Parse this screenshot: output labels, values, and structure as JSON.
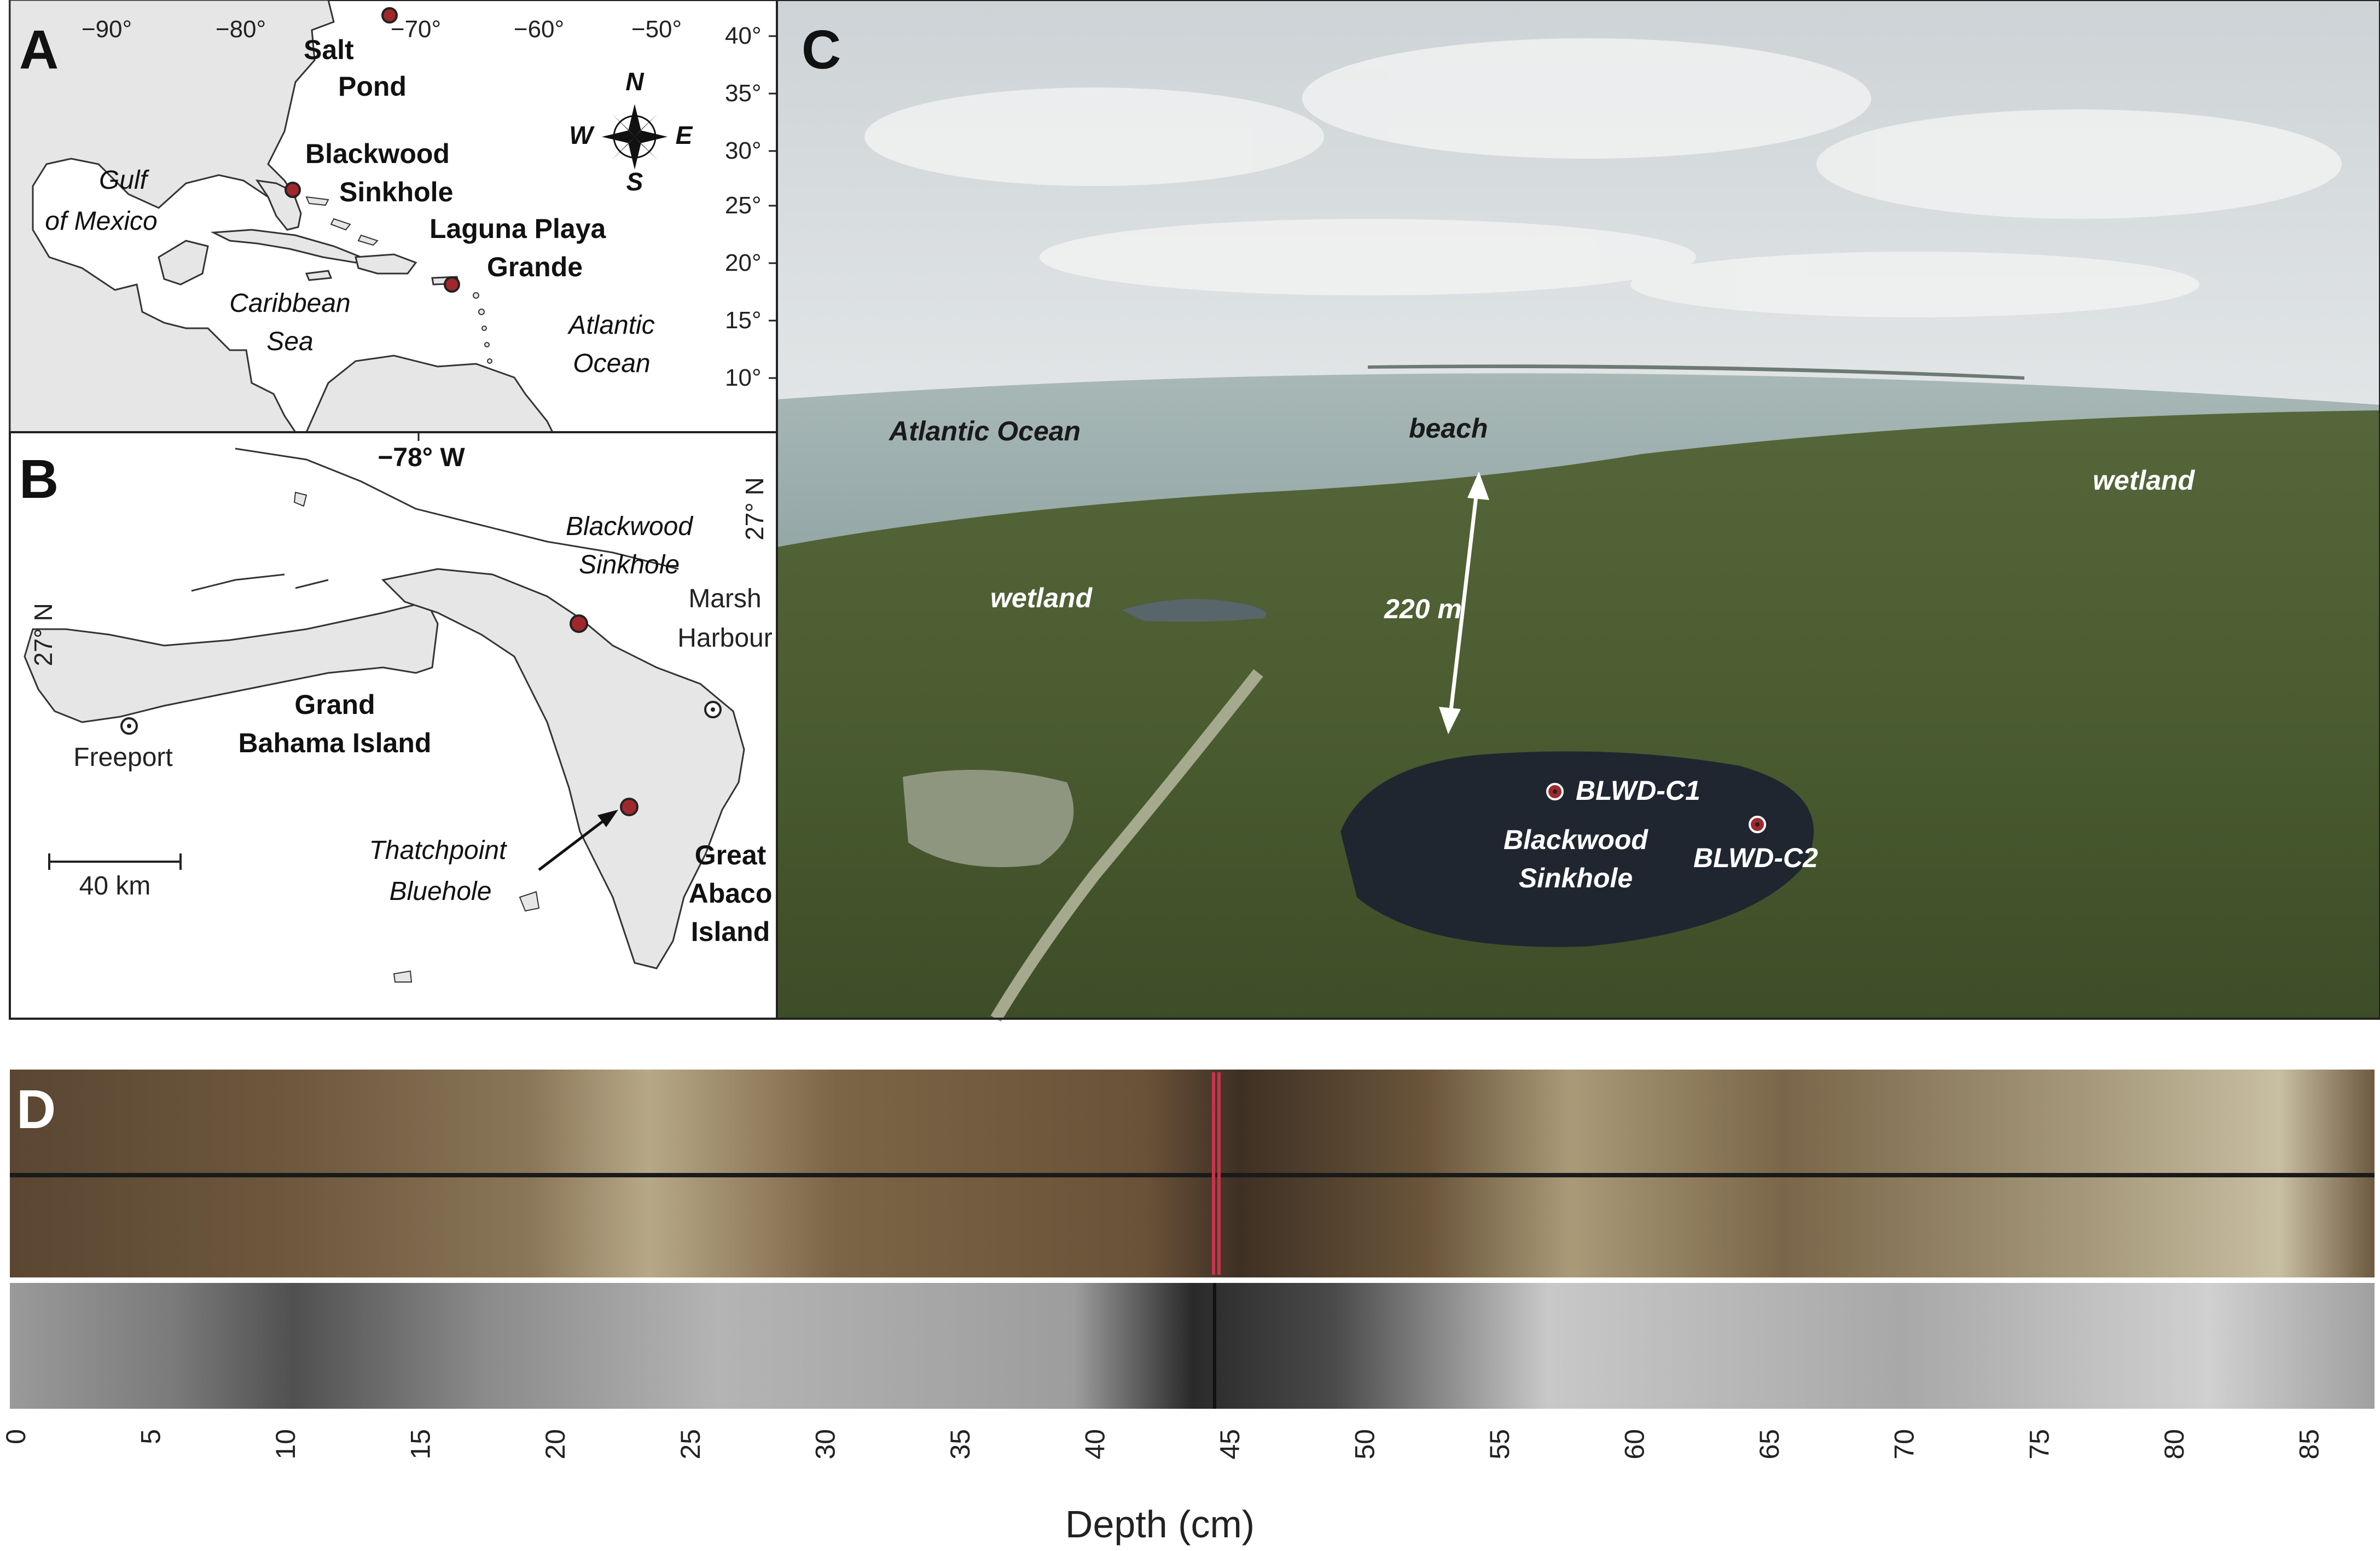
{
  "panelA": {
    "letter": "A",
    "lon_ticks": [
      "−90°",
      "−80°",
      "−70°",
      "−60°",
      "−50°"
    ],
    "lat_ticks": [
      "40°",
      "35°",
      "30°",
      "25°",
      "20°",
      "15°",
      "10°"
    ],
    "sites": {
      "salt_pond": [
        "Salt",
        "Pond"
      ],
      "blackwood": [
        "Blackwood",
        "Sinkhole"
      ],
      "laguna": [
        "Laguna Playa",
        "Grande"
      ]
    },
    "water_labels": {
      "gulf": [
        "Gulf",
        "of Mexico"
      ],
      "caribbean": [
        "Caribbean",
        "Sea"
      ],
      "atlantic": [
        "Atlantic",
        "Ocean"
      ]
    },
    "compass": {
      "n": "N",
      "s": "S",
      "e": "E",
      "w": "W"
    }
  },
  "panelB": {
    "letter": "B",
    "lon_label": "−78° W",
    "lat_label_left": "27° N",
    "lat_label_right": "27° N",
    "blackwood": [
      "Blackwood",
      "Sinkhole"
    ],
    "marsh": [
      "Marsh",
      "Harbour"
    ],
    "grand_bahama": [
      "Grand",
      "Bahama Island"
    ],
    "freeport": "Freeport",
    "thatchpoint": [
      "Thatchpoint",
      "Bluehole"
    ],
    "great_abaco": [
      "Great",
      "Abaco",
      "Island"
    ],
    "scale": "40 km"
  },
  "panelC": {
    "letter": "C",
    "labels": {
      "atlantic": "Atlantic Ocean",
      "beach": "beach",
      "wetland_right": "wetland",
      "wetland_left": "wetland",
      "distance": "220 m",
      "core1": "BLWD-C1",
      "core2": "BLWD-C2",
      "sinkhole": [
        "Blackwood",
        "Sinkhole"
      ]
    }
  },
  "panelD": {
    "letter": "D",
    "axis_label": "Depth (cm)",
    "ticks": [
      "0",
      "5",
      "10",
      "15",
      "20",
      "25",
      "30",
      "35",
      "40",
      "45",
      "50",
      "55",
      "60",
      "65",
      "70",
      "75",
      "80",
      "85"
    ],
    "depth_range": [
      0,
      87
    ]
  },
  "colors": {
    "site_marker": "#a0282c",
    "land": "#e6e6e6",
    "sky": "#dfe4e6",
    "ocean": "#9fb1b1",
    "vegetation": "#4b5d32",
    "sinkhole_water": "#1f2630"
  }
}
